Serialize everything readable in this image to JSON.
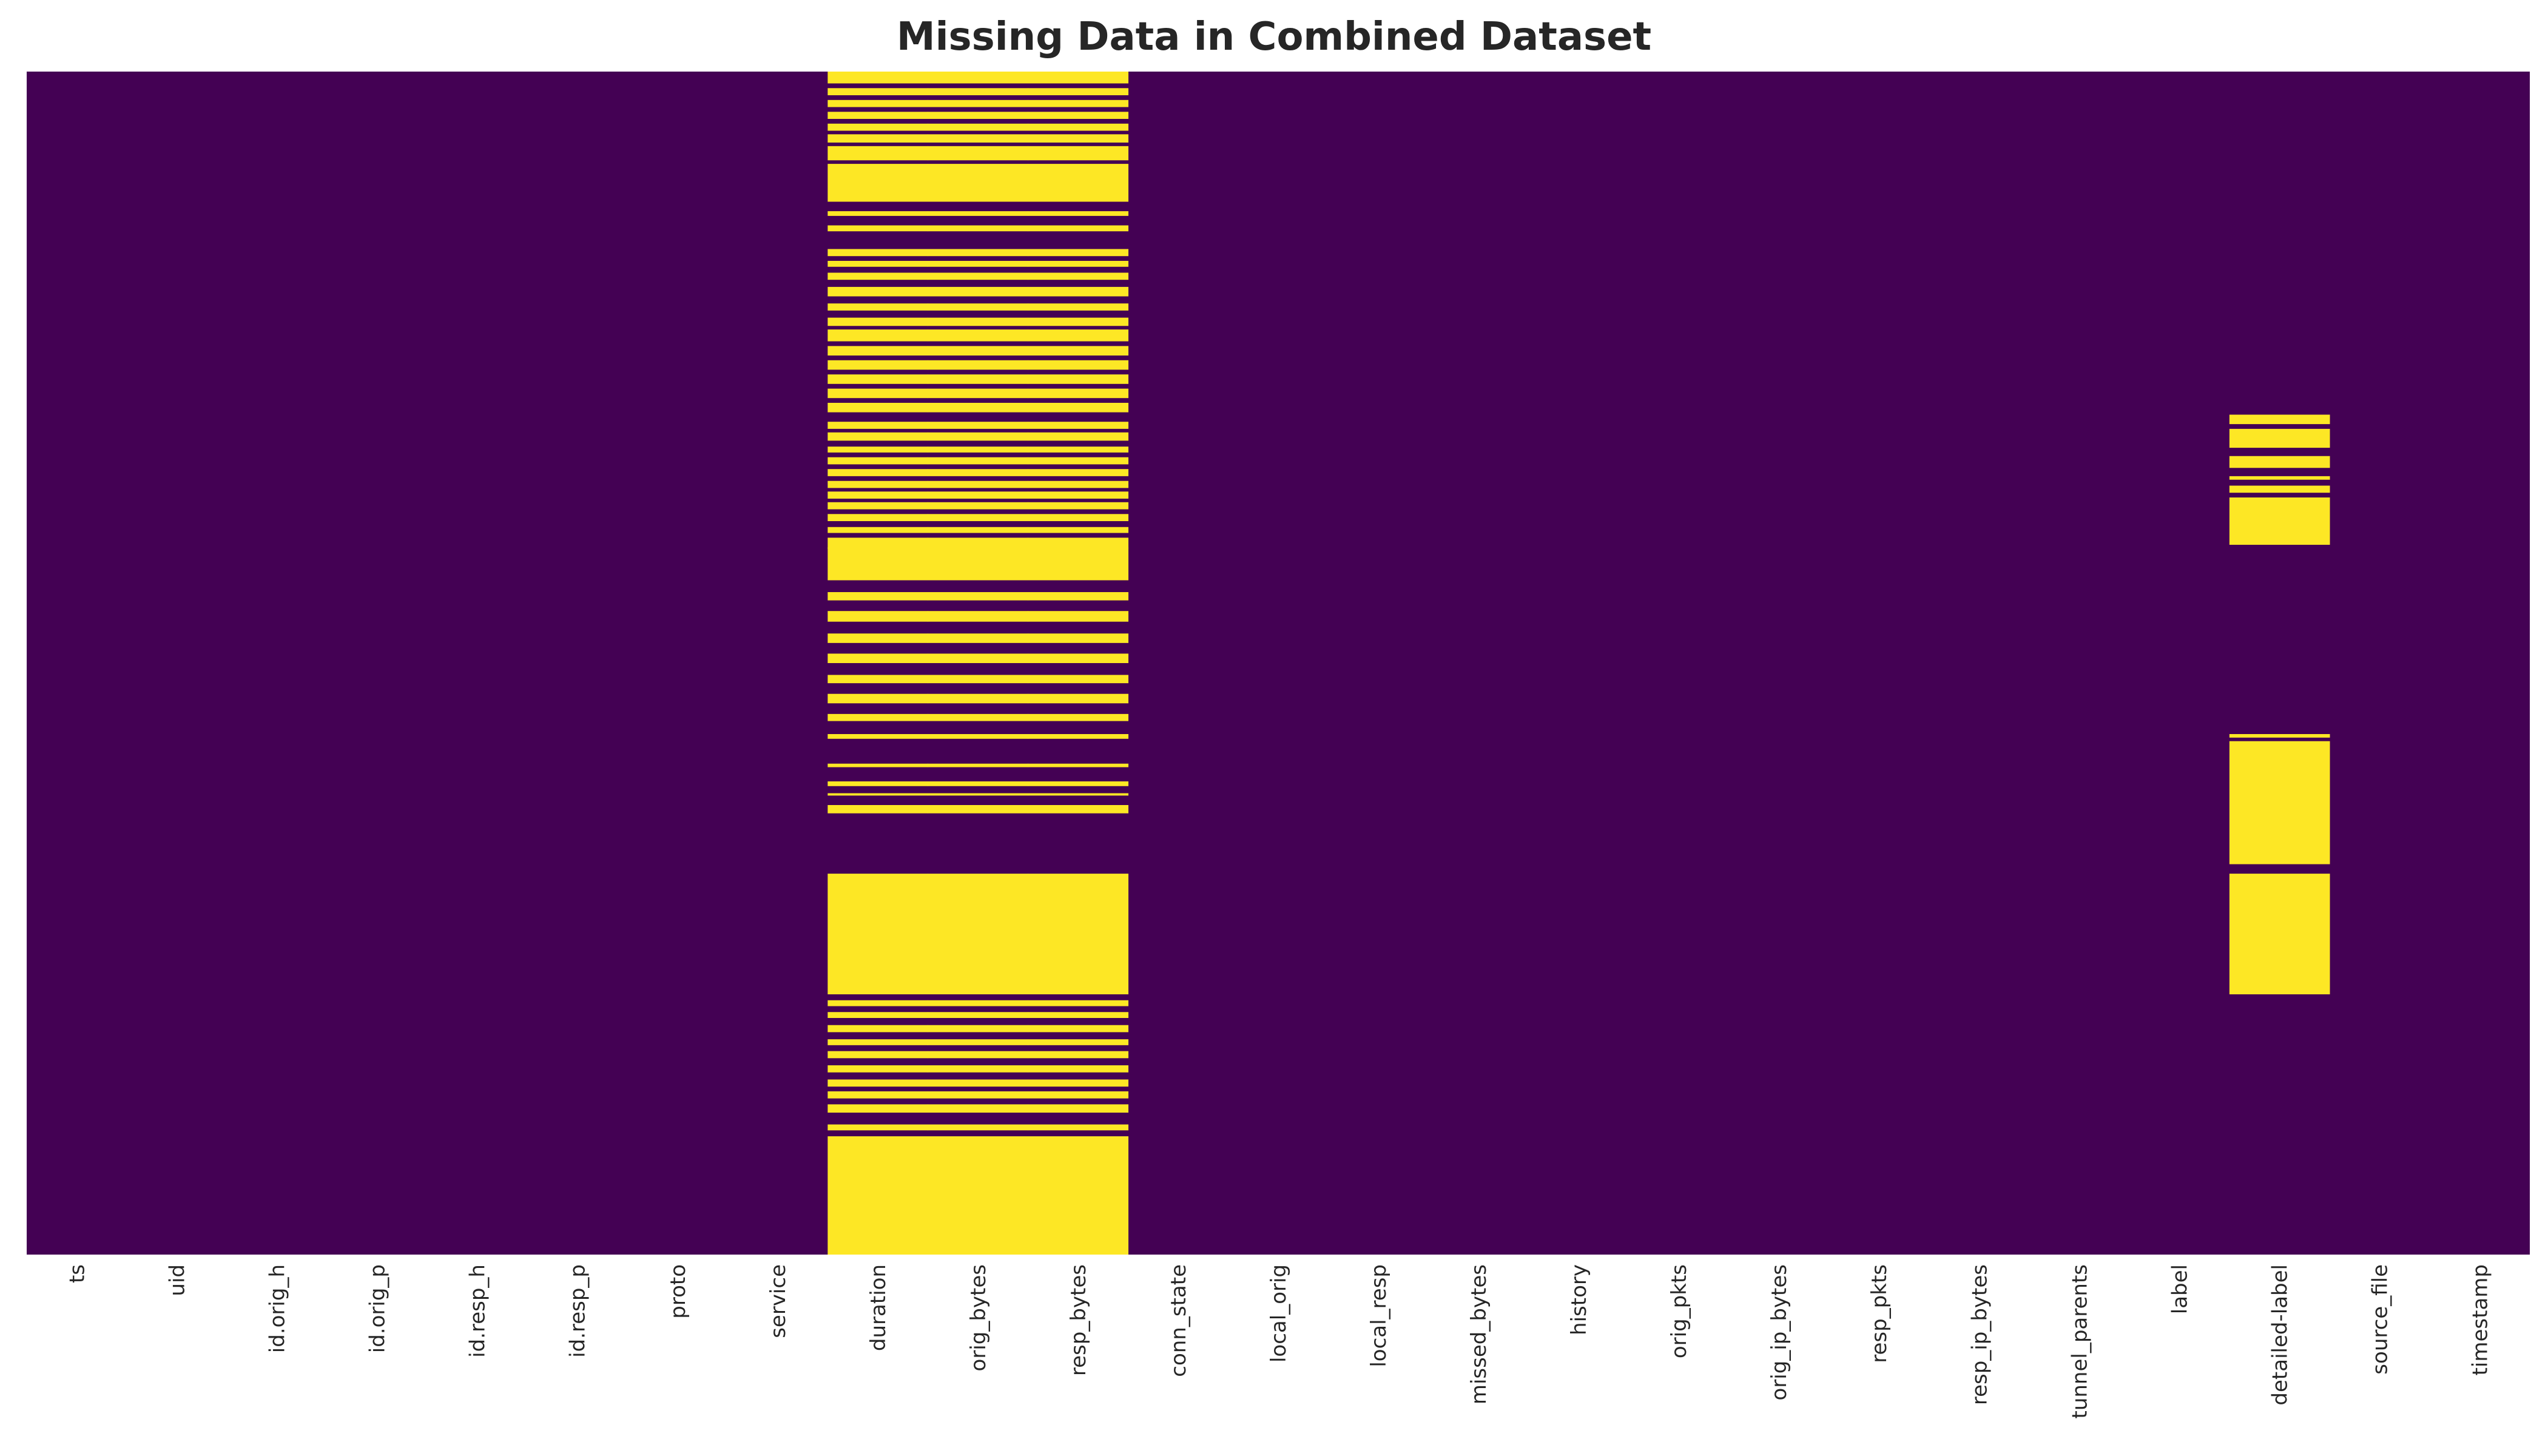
{
  "chart_data": {
    "type": "heatmap",
    "title": "Missing Data in Combined Dataset",
    "xlabel": "",
    "ylabel": "",
    "grid": false,
    "legend": "none",
    "colormap": "viridis",
    "colors": {
      "present": "#440154",
      "missing": "#fde725"
    },
    "columns": [
      "ts",
      "uid",
      "id.orig_h",
      "id.orig_p",
      "id.resp_h",
      "id.resp_p",
      "proto",
      "service",
      "duration",
      "orig_bytes",
      "resp_bytes",
      "conn_state",
      "local_orig",
      "local_resp",
      "missed_bytes",
      "history",
      "orig_pkts",
      "orig_ip_bytes",
      "resp_pkts",
      "resp_ip_bytes",
      "tunnel_parents",
      "label",
      "detailed-label",
      "source_file",
      "timestamp"
    ],
    "row_fraction_axis": "0 = first row (top), 1 = last row (bottom)",
    "missing_row_ranges": [
      {
        "columns": [
          "duration",
          "orig_bytes",
          "resp_bytes"
        ],
        "ranges": [
          [
            0.0,
            0.01
          ],
          [
            0.014,
            0.02
          ],
          [
            0.024,
            0.03
          ],
          [
            0.034,
            0.04
          ],
          [
            0.044,
            0.05
          ],
          [
            0.053,
            0.06
          ],
          [
            0.063,
            0.075
          ],
          [
            0.078,
            0.11
          ],
          [
            0.118,
            0.122
          ],
          [
            0.13,
            0.135
          ],
          [
            0.15,
            0.156
          ],
          [
            0.16,
            0.165
          ],
          [
            0.17,
            0.176
          ],
          [
            0.182,
            0.19
          ],
          [
            0.196,
            0.202
          ],
          [
            0.208,
            0.215
          ],
          [
            0.218,
            0.228
          ],
          [
            0.232,
            0.24
          ],
          [
            0.244,
            0.252
          ],
          [
            0.256,
            0.264
          ],
          [
            0.268,
            0.276
          ],
          [
            0.28,
            0.288
          ],
          [
            0.296,
            0.302
          ],
          [
            0.305,
            0.312
          ],
          [
            0.317,
            0.322
          ],
          [
            0.326,
            0.332
          ],
          [
            0.336,
            0.342
          ],
          [
            0.346,
            0.352
          ],
          [
            0.355,
            0.361
          ],
          [
            0.364,
            0.37
          ],
          [
            0.374,
            0.38
          ],
          [
            0.394,
            0.4
          ],
          [
            0.402,
            0.402
          ],
          [
            0.385,
            0.39
          ],
          [
            0.4,
            0.43
          ],
          [
            0.44,
            0.447
          ],
          [
            0.456,
            0.465
          ],
          [
            0.475,
            0.483
          ],
          [
            0.492,
            0.5
          ],
          [
            0.51,
            0.517
          ],
          [
            0.526,
            0.534
          ],
          [
            0.543,
            0.549
          ],
          [
            0.56,
            0.564
          ],
          [
            0.585,
            0.588
          ],
          [
            0.6,
            0.604
          ],
          [
            0.61,
            0.612
          ],
          [
            0.62,
            0.627
          ],
          [
            0.678,
            0.78
          ],
          [
            0.785,
            0.79
          ],
          [
            0.795,
            0.8
          ],
          [
            0.806,
            0.812
          ],
          [
            0.818,
            0.823
          ],
          [
            0.828,
            0.834
          ],
          [
            0.84,
            0.846
          ],
          [
            0.852,
            0.858
          ],
          [
            0.862,
            0.868
          ],
          [
            0.873,
            0.88
          ],
          [
            0.89,
            0.895
          ],
          [
            0.9,
            0.95
          ],
          [
            0.95,
            1.0
          ]
        ]
      },
      {
        "columns": [
          "detailed-label"
        ],
        "ranges": [
          [
            0.29,
            0.298
          ],
          [
            0.302,
            0.318
          ],
          [
            0.325,
            0.335
          ],
          [
            0.342,
            0.345
          ],
          [
            0.35,
            0.356
          ],
          [
            0.36,
            0.4
          ],
          [
            0.56,
            0.563
          ],
          [
            0.566,
            0.67
          ],
          [
            0.678,
            0.78
          ]
        ]
      }
    ]
  }
}
